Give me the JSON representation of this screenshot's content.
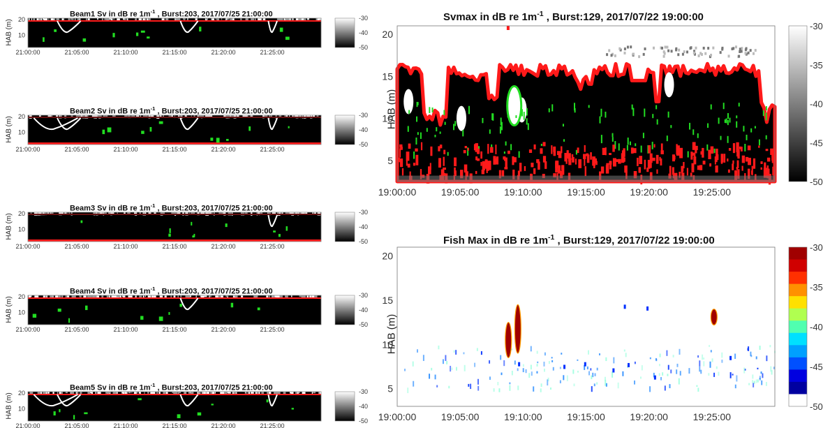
{
  "small_panels": [
    {
      "title_main": "Beam1 Sv in dB re 1m",
      "title_sup": "-1",
      "title_tail": " , Burst:203, 2017/07/25 21:00:00",
      "ylabel": "HAB (m)"
    },
    {
      "title_main": "Beam2 Sv in dB re 1m",
      "title_sup": "-1",
      "title_tail": " , Burst:203, 2017/07/25 21:00:00",
      "ylabel": "HAB (m)"
    },
    {
      "title_main": "Beam3 Sv in dB re 1m",
      "title_sup": "-1",
      "title_tail": " , Burst:203, 2017/07/25 21:00:00",
      "ylabel": "HAB (m)"
    },
    {
      "title_main": "Beam4 Sv in dB re 1m",
      "title_sup": "-1",
      "title_tail": " , Burst:203, 2017/07/25 21:00:00",
      "ylabel": "HAB (m)"
    },
    {
      "title_main": "Beam5 Sv in dB re 1m",
      "title_sup": "-1",
      "title_tail": " , Burst:203, 2017/07/25 21:00:00",
      "ylabel": "HAB (m)"
    }
  ],
  "small_xticks": [
    "21:00:00",
    "21:05:00",
    "21:10:00",
    "21:15:00",
    "21:20:00",
    "21:25:00"
  ],
  "small_yticks": [
    "10",
    "20"
  ],
  "small_cbar_ticks": [
    "-30",
    "-40",
    "-50"
  ],
  "svmax": {
    "title_main": "Svmax in dB re 1m",
    "title_sup": "-1",
    "title_tail": " , Burst:129, 2017/07/22 19:00:00",
    "ylabel": "HAB (m)"
  },
  "fishmax": {
    "title_main": "Fish Max in dB re 1m",
    "title_sup": "-1",
    "title_tail": " , Burst:129, 2017/07/22 19:00:00",
    "ylabel": "HAB (m)"
  },
  "big_xticks": [
    "19:00:00",
    "19:05:00",
    "19:10:00",
    "19:15:00",
    "19:20:00",
    "19:25:00"
  ],
  "big_yticks": [
    "5",
    "10",
    "15",
    "20"
  ],
  "big_cbar_ticks": [
    "-30",
    "-35",
    "-40",
    "-45",
    "-50"
  ],
  "colors": {
    "echo_red": "#ff1a1a",
    "echo_green": "#22dd22",
    "fish_strong": "#a00000",
    "background_black": "#000000"
  },
  "chart_data": [
    {
      "type": "heatmap",
      "title": "Beam1 Sv in dB re 1m-1 , Burst:203, 2017/07/25 21:00:00",
      "ylabel": "HAB (m)",
      "xlim": [
        "21:00:00",
        "21:30:00"
      ],
      "ylim": [
        2,
        21
      ],
      "clim": [
        -50,
        -30
      ],
      "colormap": "gray"
    },
    {
      "type": "heatmap",
      "title": "Beam2 Sv in dB re 1m-1 , Burst:203, 2017/07/25 21:00:00",
      "ylabel": "HAB (m)",
      "xlim": [
        "21:00:00",
        "21:30:00"
      ],
      "ylim": [
        2,
        21
      ],
      "clim": [
        -50,
        -30
      ],
      "colormap": "gray"
    },
    {
      "type": "heatmap",
      "title": "Beam3 Sv in dB re 1m-1 , Burst:203, 2017/07/25 21:00:00",
      "ylabel": "HAB (m)",
      "xlim": [
        "21:00:00",
        "21:30:00"
      ],
      "ylim": [
        2,
        21
      ],
      "clim": [
        -50,
        -30
      ],
      "colormap": "gray"
    },
    {
      "type": "heatmap",
      "title": "Beam4 Sv in dB re 1m-1 , Burst:203, 2017/07/25 21:00:00",
      "ylabel": "HAB (m)",
      "xlim": [
        "21:00:00",
        "21:30:00"
      ],
      "ylim": [
        2,
        21
      ],
      "clim": [
        -50,
        -30
      ],
      "colormap": "gray"
    },
    {
      "type": "heatmap",
      "title": "Beam5 Sv in dB re 1m-1 , Burst:203, 2017/07/25 21:00:00",
      "ylabel": "HAB (m)",
      "xlim": [
        "21:00:00",
        "21:30:00"
      ],
      "ylim": [
        2,
        21
      ],
      "clim": [
        -50,
        -30
      ],
      "colormap": "gray"
    },
    {
      "type": "heatmap",
      "title": "Svmax in dB re 1m-1 , Burst:129, 2017/07/22 19:00:00",
      "ylabel": "HAB (m)",
      "xlim": [
        "19:00:00",
        "19:30:00"
      ],
      "ylim": [
        2.5,
        21
      ],
      "clim": [
        -50,
        -30
      ],
      "colormap": "gray"
    },
    {
      "type": "heatmap",
      "title": "Fish Max in dB re 1m-1 , Burst:129, 2017/07/22 19:00:00",
      "ylabel": "HAB (m)",
      "xlim": [
        "19:00:00",
        "19:30:00"
      ],
      "ylim": [
        3,
        21
      ],
      "clim": [
        -50,
        -30
      ],
      "colormap": "jet",
      "notable_targets": [
        {
          "time": "19:08:50",
          "hab_range": [
            8.5,
            12.5
          ],
          "dB": -30
        },
        {
          "time": "19:09:35",
          "hab_range": [
            9,
            14.5
          ],
          "dB": -30
        },
        {
          "time": "19:25:10",
          "hab_range": [
            12.2,
            14
          ],
          "dB": -31
        }
      ]
    }
  ]
}
